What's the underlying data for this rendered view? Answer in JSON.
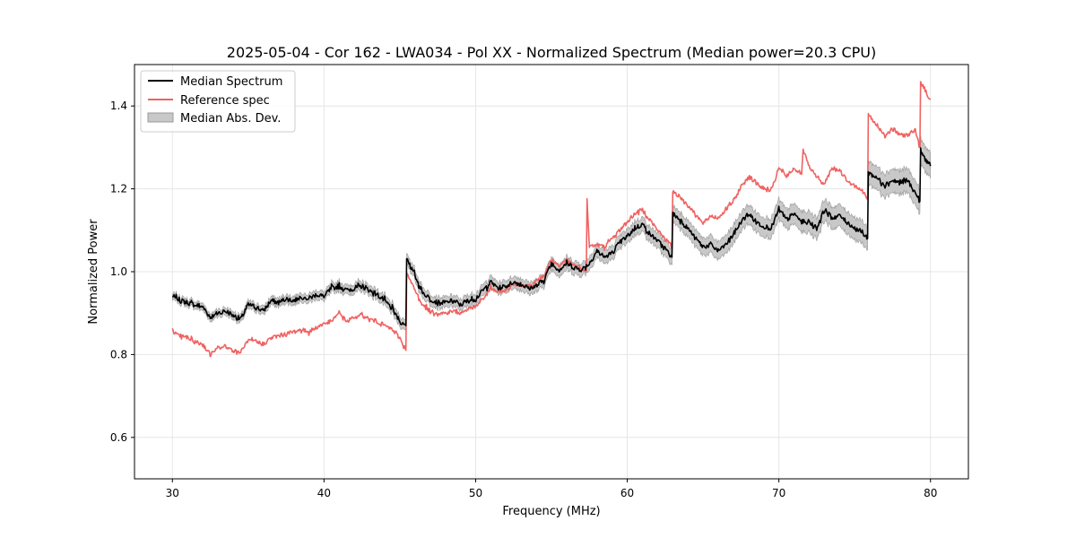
{
  "chart_data": {
    "type": "line",
    "title": "2025-05-04 - Cor 162 - LWA034 - Pol XX - Normalized Spectrum (Median power=20.3 CPU)",
    "xlabel": "Frequency (MHz)",
    "ylabel": "Normalized Power",
    "xlim": [
      27.5,
      82.5
    ],
    "ylim": [
      0.5,
      1.5
    ],
    "xticks": [
      30,
      40,
      50,
      60,
      70,
      80
    ],
    "yticks": [
      0.6,
      0.8,
      1.0,
      1.2,
      1.4
    ],
    "xtick_labels": [
      "30",
      "40",
      "50",
      "60",
      "70",
      "80"
    ],
    "ytick_labels": [
      "0.6",
      "0.8",
      "1.0",
      "1.2",
      "1.4"
    ],
    "grid": true,
    "legend_position": "top-left",
    "legend": [
      "Median Spectrum",
      "Reference spec",
      "Median Abs. Dev."
    ],
    "colors": {
      "median": "#000000",
      "reference": "#f06262",
      "mad_fill": "#c8c8c8",
      "mad_edge": "#9a9a9a"
    },
    "median_spectrum": {
      "x": [
        30.0,
        30.3,
        30.6,
        31.0,
        31.5,
        32.0,
        32.5,
        33.0,
        33.5,
        34.0,
        34.5,
        35.0,
        35.5,
        36.0,
        36.5,
        37.0,
        37.5,
        38.0,
        38.5,
        39.0,
        39.5,
        40.0,
        40.5,
        41.0,
        41.5,
        42.0,
        42.5,
        43.0,
        43.5,
        44.0,
        44.5,
        45.0,
        45.4,
        45.45,
        46.0,
        46.5,
        47.0,
        47.5,
        48.0,
        48.5,
        49.0,
        49.5,
        50.0,
        50.5,
        51.0,
        51.5,
        52.0,
        52.5,
        53.0,
        53.5,
        54.0,
        54.5,
        55.0,
        55.5,
        56.0,
        56.5,
        57.0,
        57.5,
        58.0,
        58.5,
        59.0,
        59.5,
        60.0,
        60.5,
        61.0,
        61.5,
        62.0,
        62.5,
        62.95,
        63.0,
        63.5,
        64.0,
        64.5,
        65.0,
        65.5,
        66.0,
        66.5,
        67.0,
        67.5,
        68.0,
        68.5,
        69.0,
        69.5,
        70.0,
        70.5,
        71.0,
        71.5,
        72.0,
        72.5,
        73.0,
        73.5,
        74.0,
        74.5,
        75.0,
        75.5,
        75.85,
        75.9,
        76.5,
        77.0,
        77.5,
        78.0,
        78.5,
        79.0,
        79.3,
        79.35,
        79.6,
        80.0
      ],
      "y": [
        0.94,
        0.935,
        0.93,
        0.925,
        0.92,
        0.915,
        0.89,
        0.9,
        0.905,
        0.895,
        0.885,
        0.92,
        0.915,
        0.905,
        0.93,
        0.925,
        0.935,
        0.93,
        0.94,
        0.935,
        0.945,
        0.94,
        0.96,
        0.965,
        0.955,
        0.96,
        0.965,
        0.955,
        0.945,
        0.93,
        0.91,
        0.88,
        0.87,
        1.035,
        0.99,
        0.95,
        0.935,
        0.925,
        0.925,
        0.93,
        0.92,
        0.93,
        0.935,
        0.955,
        0.975,
        0.96,
        0.965,
        0.975,
        0.97,
        0.96,
        0.965,
        0.98,
        1.02,
        1.005,
        1.02,
        1.01,
        1.005,
        1.02,
        1.05,
        1.035,
        1.045,
        1.07,
        1.085,
        1.105,
        1.115,
        1.09,
        1.075,
        1.055,
        1.035,
        1.14,
        1.125,
        1.105,
        1.08,
        1.06,
        1.065,
        1.05,
        1.065,
        1.09,
        1.12,
        1.14,
        1.12,
        1.11,
        1.105,
        1.15,
        1.125,
        1.14,
        1.12,
        1.12,
        1.105,
        1.15,
        1.13,
        1.135,
        1.12,
        1.105,
        1.095,
        1.08,
        1.24,
        1.225,
        1.21,
        1.22,
        1.215,
        1.22,
        1.19,
        1.17,
        1.29,
        1.275,
        1.255
      ]
    },
    "reference_spec": {
      "x": [
        30.0,
        30.3,
        30.6,
        31.0,
        31.5,
        32.0,
        32.5,
        33.0,
        33.5,
        34.0,
        34.5,
        35.0,
        35.5,
        36.0,
        36.5,
        37.0,
        37.5,
        38.0,
        38.5,
        39.0,
        39.5,
        40.0,
        40.5,
        41.0,
        41.5,
        42.0,
        42.5,
        43.0,
        43.5,
        44.0,
        44.5,
        45.0,
        45.4,
        45.45,
        46.0,
        46.5,
        47.0,
        47.5,
        48.0,
        48.5,
        49.0,
        49.5,
        50.0,
        50.5,
        51.0,
        51.5,
        52.0,
        52.5,
        53.0,
        53.5,
        54.0,
        54.5,
        55.0,
        55.5,
        56.0,
        56.5,
        57.0,
        57.3,
        57.35,
        57.5,
        58.0,
        58.5,
        59.0,
        59.5,
        60.0,
        60.5,
        61.0,
        61.5,
        62.0,
        62.5,
        62.95,
        63.0,
        63.5,
        64.0,
        64.5,
        65.0,
        65.5,
        66.0,
        66.5,
        67.0,
        67.5,
        68.0,
        68.5,
        69.0,
        69.5,
        70.0,
        70.5,
        71.0,
        71.5,
        71.6,
        72.0,
        72.5,
        73.0,
        73.5,
        74.0,
        74.5,
        75.0,
        75.5,
        75.85,
        75.9,
        76.5,
        77.0,
        77.5,
        78.0,
        78.5,
        79.0,
        79.3,
        79.35,
        79.6,
        80.0
      ],
      "y": [
        0.855,
        0.85,
        0.845,
        0.84,
        0.83,
        0.825,
        0.8,
        0.815,
        0.82,
        0.81,
        0.805,
        0.835,
        0.83,
        0.825,
        0.84,
        0.845,
        0.85,
        0.855,
        0.86,
        0.855,
        0.865,
        0.875,
        0.88,
        0.9,
        0.88,
        0.89,
        0.895,
        0.885,
        0.88,
        0.87,
        0.86,
        0.84,
        0.81,
        0.995,
        0.955,
        0.92,
        0.905,
        0.9,
        0.9,
        0.905,
        0.9,
        0.91,
        0.915,
        0.935,
        0.96,
        0.95,
        0.955,
        0.97,
        0.97,
        0.965,
        0.975,
        0.99,
        1.03,
        1.01,
        1.03,
        1.015,
        1.01,
        1.0,
        1.175,
        1.06,
        1.065,
        1.06,
        1.08,
        1.1,
        1.12,
        1.14,
        1.15,
        1.125,
        1.1,
        1.08,
        1.06,
        1.195,
        1.18,
        1.16,
        1.14,
        1.115,
        1.135,
        1.13,
        1.15,
        1.17,
        1.205,
        1.23,
        1.215,
        1.2,
        1.195,
        1.25,
        1.23,
        1.25,
        1.235,
        1.295,
        1.25,
        1.23,
        1.21,
        1.25,
        1.245,
        1.22,
        1.21,
        1.195,
        1.175,
        1.38,
        1.35,
        1.33,
        1.345,
        1.33,
        1.33,
        1.34,
        1.3,
        1.46,
        1.44,
        1.415
      ]
    },
    "mad_halfwidth": [
      0.008,
      0.018,
      0.03
    ]
  }
}
